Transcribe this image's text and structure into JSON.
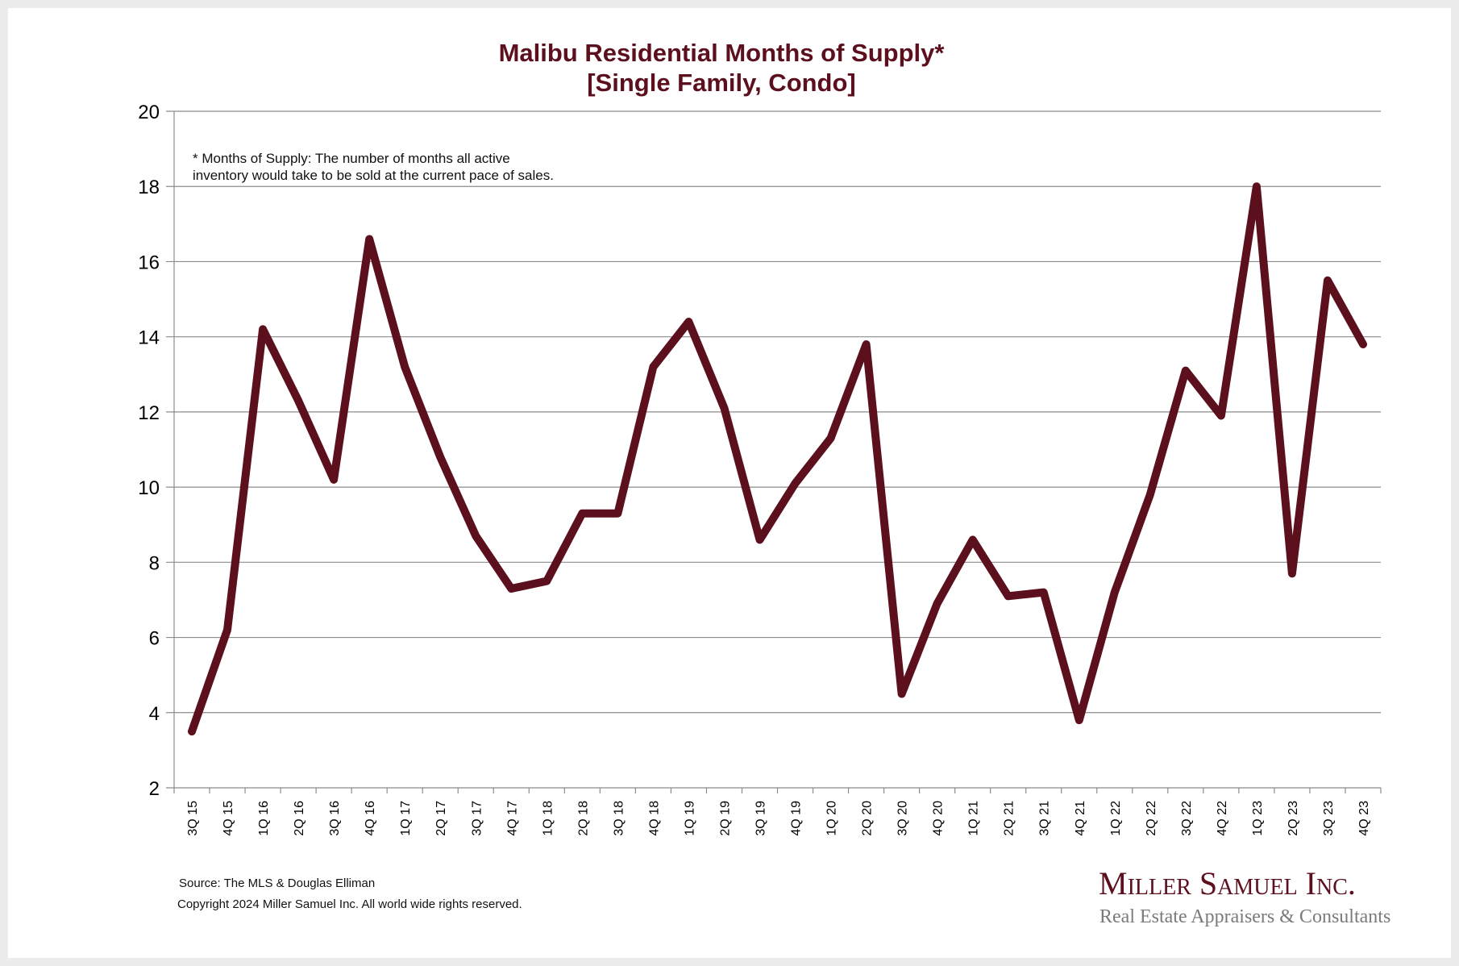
{
  "chart_data": {
    "type": "line",
    "title": "Malibu Residential Months of Supply*",
    "subtitle": "[Single Family, Condo]",
    "xlabel": "",
    "ylabel": "",
    "ylim": [
      2,
      20
    ],
    "yticks": [
      2,
      4,
      6,
      8,
      10,
      12,
      14,
      16,
      18,
      20
    ],
    "grid": true,
    "legend": "none",
    "categories": [
      "3Q 15",
      "4Q 15",
      "1Q 16",
      "2Q 16",
      "3Q 16",
      "4Q 16",
      "1Q 17",
      "2Q 17",
      "3Q 17",
      "4Q 17",
      "1Q 18",
      "2Q 18",
      "3Q 18",
      "4Q 18",
      "1Q 19",
      "2Q 19",
      "3Q 19",
      "4Q 19",
      "1Q 20",
      "2Q 20",
      "3Q 20",
      "4Q 20",
      "1Q 21",
      "2Q 21",
      "3Q 21",
      "4Q 21",
      "1Q 22",
      "2Q 22",
      "3Q 22",
      "4Q 22",
      "1Q 23",
      "2Q 23",
      "3Q 23",
      "4Q 23"
    ],
    "series": [
      {
        "name": "Months of Supply",
        "color": "#5c0f1c",
        "values": [
          3.5,
          6.2,
          14.2,
          12.3,
          10.2,
          16.6,
          13.2,
          10.8,
          8.7,
          7.3,
          7.5,
          9.3,
          9.3,
          13.2,
          14.4,
          12.1,
          8.6,
          10.1,
          11.3,
          13.8,
          4.5,
          6.9,
          8.6,
          7.1,
          7.2,
          3.8,
          7.2,
          9.8,
          13.1,
          11.9,
          18.0,
          7.7,
          15.5,
          13.8
        ]
      }
    ],
    "annotation": [
      "* Months of Supply: The number of months all active",
      "inventory would take to be sold at the current pace of sales."
    ]
  },
  "footer": {
    "source": "Source: The MLS & Douglas Elliman",
    "copyright": "Copyright 2024 Miller Samuel Inc.  All world wide rights reserved."
  },
  "logo": {
    "name": "Miller Samuel Inc.",
    "tagline": "Real Estate Appraisers & Consultants"
  },
  "colors": {
    "line": "#5c0f1c",
    "title": "#5c0f1c",
    "grid": "#8c8c8c",
    "frame": "#ececec"
  }
}
